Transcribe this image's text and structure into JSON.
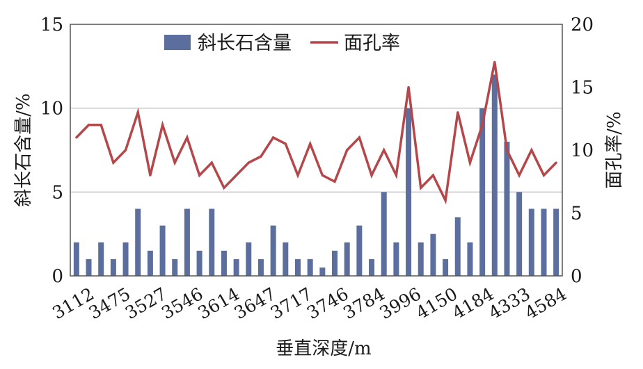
{
  "chart_data": {
    "type": "bar+line",
    "xlabel": "垂直深度/m",
    "ylabel_left": "斜长石含量/%",
    "ylabel_right": "面孔率/%",
    "ylim_left": [
      0,
      15
    ],
    "yticks_left": [
      0,
      5,
      10,
      15
    ],
    "ylim_right": [
      0,
      20
    ],
    "yticks_right": [
      0,
      5,
      10,
      15,
      20
    ],
    "x_tick_labels": [
      "3112",
      "3475",
      "3527",
      "3546",
      "3614",
      "3647",
      "3717",
      "3746",
      "3784",
      "3996",
      "4150",
      "4184",
      "4333",
      "4584"
    ],
    "gridlines_left": [
      5,
      10
    ],
    "legend": {
      "position": "top",
      "bar_label": "斜长石含量",
      "line_label": "面孔率"
    },
    "series": [
      {
        "name": "斜长石含量",
        "type": "bar",
        "axis": "left",
        "color": "#5b6e9e",
        "values": [
          2,
          1,
          2,
          1,
          2,
          4,
          1.5,
          3,
          1,
          4,
          1.5,
          4,
          1.5,
          1,
          2,
          1,
          3,
          2,
          1,
          1,
          0.5,
          1.5,
          2,
          3,
          1,
          5,
          2,
          10,
          2,
          2.5,
          1,
          3.5,
          2,
          10,
          12,
          8,
          5,
          4,
          4,
          4
        ]
      },
      {
        "name": "面孔率",
        "type": "line",
        "axis": "right",
        "color": "#b5474b",
        "values": [
          11,
          12,
          12,
          9,
          10,
          13,
          8,
          12,
          9,
          11,
          8,
          9,
          7,
          8,
          9,
          9.5,
          11,
          10.5,
          8,
          10.5,
          8,
          7.5,
          10,
          11,
          8,
          10,
          8,
          15,
          7,
          8,
          6,
          13,
          9,
          12,
          17,
          10,
          8,
          10,
          8,
          9
        ]
      }
    ]
  }
}
